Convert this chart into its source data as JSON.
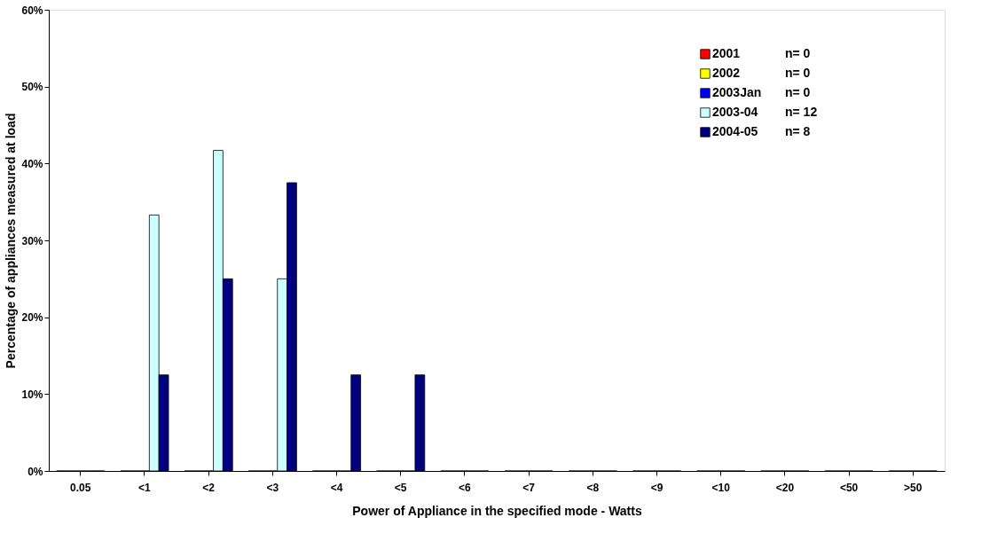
{
  "chart_data": {
    "type": "bar",
    "xlabel": "Power of Appliance in the specified mode - Watts",
    "ylabel": "Percentage of appliances measured at load",
    "categories": [
      "0.05",
      "<1",
      "<2",
      "<3",
      "<4",
      "<5",
      "<6",
      "<7",
      "<8",
      "<9",
      "<10",
      "<20",
      "<50",
      ">50"
    ],
    "series": [
      {
        "name": "2001",
        "color": "#ff0000",
        "values": [
          0,
          0,
          0,
          0,
          0,
          0,
          0,
          0,
          0,
          0,
          0,
          0,
          0,
          0
        ]
      },
      {
        "name": "2002",
        "color": "#ffff00",
        "values": [
          0,
          0,
          0,
          0,
          0,
          0,
          0,
          0,
          0,
          0,
          0,
          0,
          0,
          0
        ]
      },
      {
        "name": "2003Jan",
        "color": "#0000ff",
        "values": [
          0,
          0,
          0,
          0,
          0,
          0,
          0,
          0,
          0,
          0,
          0,
          0,
          0,
          0
        ]
      },
      {
        "name": "2003-04",
        "color": "#ccffff",
        "values": [
          0,
          33.3,
          41.7,
          25,
          0,
          0,
          0,
          0,
          0,
          0,
          0,
          0,
          0,
          0
        ]
      },
      {
        "name": "2004-05",
        "color": "#000080",
        "values": [
          0,
          12.5,
          25,
          37.5,
          12.5,
          12.5,
          0,
          0,
          0,
          0,
          0,
          0,
          0,
          0
        ]
      }
    ],
    "annotations": [
      "n= 0",
      "n= 0",
      "n= 0",
      "n= 12",
      "n= 8"
    ],
    "ylim": [
      0,
      60
    ],
    "yticks": [
      {
        "value": 0,
        "label": "0%"
      },
      {
        "value": 10,
        "label": "10%"
      },
      {
        "value": 20,
        "label": "20%"
      },
      {
        "value": 30,
        "label": "30%"
      },
      {
        "value": 40,
        "label": "40%"
      },
      {
        "value": 50,
        "label": "50%"
      },
      {
        "value": 60,
        "label": "60%"
      }
    ],
    "grid": false,
    "legend": "top right"
  }
}
